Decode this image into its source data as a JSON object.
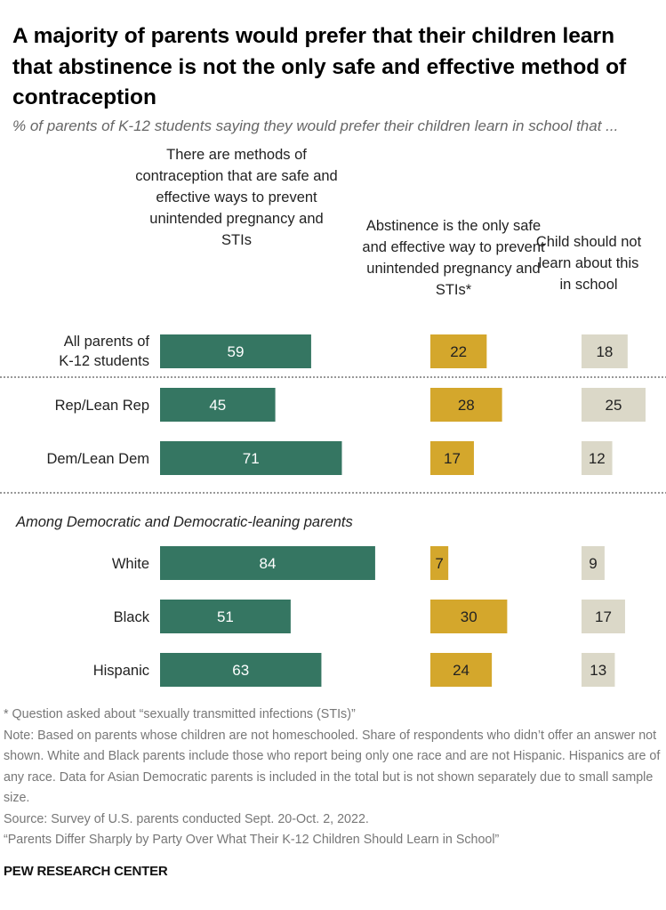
{
  "title": "A majority of parents would prefer that their children learn that abstinence is not the only safe and effective method of contraception",
  "subtitle": "% of parents of K-12 students saying they would prefer their children learn in school that ...",
  "chart_data": {
    "type": "bar",
    "orientation": "horizontal",
    "title": "A majority of parents would prefer that their children learn that abstinence is not the only safe and effective method of contraception",
    "subtitle": "% of parents of K-12 students saying they would prefer their children learn in school that ...",
    "categories": [
      "All parents of K-12 students",
      "Rep/Lean Rep",
      "Dem/Lean Dem",
      "White",
      "Black",
      "Hispanic"
    ],
    "group_label": "Among Democratic and Democratic-leaning parents",
    "series": [
      {
        "name": "There are methods of contraception that are safe and effective ways to prevent unintended pregnancy and STIs",
        "color": "#357662",
        "values": [
          59,
          45,
          71,
          84,
          51,
          63
        ]
      },
      {
        "name": "Abstinence is the only safe and effective way to prevent unintended pregnancy and STIs*",
        "color": "#d4a72c",
        "values": [
          22,
          28,
          17,
          7,
          30,
          24
        ]
      },
      {
        "name": "Child should not learn about this in school",
        "color": "#dbd8c8",
        "values": [
          18,
          25,
          12,
          9,
          17,
          13
        ]
      }
    ],
    "xlim": [
      0,
      100
    ],
    "grid": false,
    "legend": "column headers on top"
  },
  "notes": [
    "* Question asked about “sexually transmitted infections (STIs)”",
    "Note: Based on parents whose children are not homeschooled. Share of respondents who didn’t offer an answer not shown. White and Black parents include those who report being only one race and are not Hispanic. Hispanics are of any race. Data for Asian Democratic parents is included in the total but is not shown separately due to small sample size.",
    "Source: Survey of U.S. parents conducted Sept. 20-Oct. 2, 2022.",
    "“Parents Differ Sharply by Party Over What Their K-12 Children Should Learn in School”"
  ],
  "brand": "PEW RESEARCH CENTER"
}
